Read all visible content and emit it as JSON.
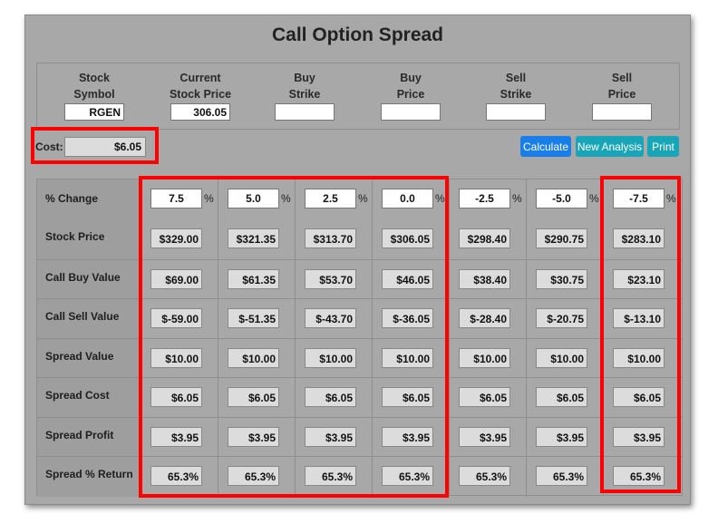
{
  "title": "Call Option Spread",
  "inputs": [
    {
      "label1": "Stock",
      "label2": "Symbol",
      "value": "RGEN"
    },
    {
      "label1": "Current",
      "label2": "Stock Price",
      "value": "306.05"
    },
    {
      "label1": "Buy",
      "label2": "Strike",
      "value": ""
    },
    {
      "label1": "Buy",
      "label2": "Price",
      "value": ""
    },
    {
      "label1": "Sell",
      "label2": "Strike",
      "value": ""
    },
    {
      "label1": "Sell",
      "label2": "Price",
      "value": ""
    }
  ],
  "cost": {
    "label": "Cost:",
    "value": "$6.05"
  },
  "buttons": {
    "calculate": "Calculate",
    "new_analysis": "New Analysis",
    "print": "Print"
  },
  "pct_sign": "%",
  "pct_change": {
    "label": "% Change",
    "values": [
      "7.5",
      "5.0",
      "2.5",
      "0.0",
      "-2.5",
      "-5.0",
      "-7.5"
    ]
  },
  "rows": [
    {
      "label": "Stock Price",
      "values": [
        "$329.00",
        "$321.35",
        "$313.70",
        "$306.05",
        "$298.40",
        "$290.75",
        "$283.10"
      ]
    },
    {
      "label": "Call Buy Value",
      "values": [
        "$69.00",
        "$61.35",
        "$53.70",
        "$46.05",
        "$38.40",
        "$30.75",
        "$23.10"
      ]
    },
    {
      "label": "Call Sell Value",
      "values": [
        "$-59.00",
        "$-51.35",
        "$-43.70",
        "$-36.05",
        "$-28.40",
        "$-20.75",
        "$-13.10"
      ]
    },
    {
      "label": "Spread Value",
      "values": [
        "$10.00",
        "$10.00",
        "$10.00",
        "$10.00",
        "$10.00",
        "$10.00",
        "$10.00"
      ]
    },
    {
      "label": "Spread Cost",
      "values": [
        "$6.05",
        "$6.05",
        "$6.05",
        "$6.05",
        "$6.05",
        "$6.05",
        "$6.05"
      ]
    },
    {
      "label": "Spread Profit",
      "values": [
        "$3.95",
        "$3.95",
        "$3.95",
        "$3.95",
        "$3.95",
        "$3.95",
        "$3.95"
      ]
    },
    {
      "label": "Spread % Return",
      "values": [
        "65.3%",
        "65.3%",
        "65.3%",
        "65.3%",
        "65.3%",
        "65.3%",
        "65.3%"
      ]
    }
  ],
  "colors": {
    "highlight": "#ff0000",
    "button_primary": "#1a7ee8",
    "button_info": "#19a5b8",
    "panel": "#a8a8a8"
  }
}
